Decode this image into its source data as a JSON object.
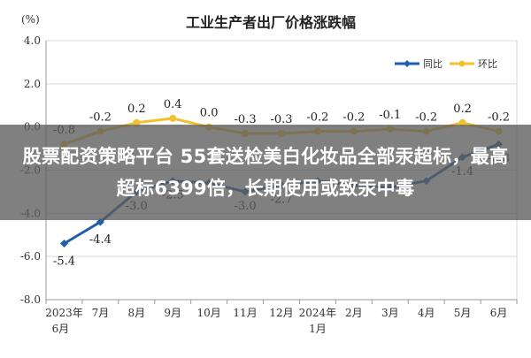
{
  "page": {
    "banner_text": "股票配资策略平台 55套送检美白化妆品全部汞超标，最高超标6399倍，长期使用或致汞中毒"
  },
  "chart_data": {
    "type": "line",
    "title": "工业生产者出厂价格涨跌幅",
    "ylabel": "(%)",
    "xlabel": "",
    "ylim": [
      -8.0,
      4.0
    ],
    "yticks": [
      "4.0",
      "2.0",
      "0.0",
      "-2.0",
      "-4.0",
      "-6.0",
      "-8.0"
    ],
    "ytick_values": [
      4,
      2,
      0,
      -2,
      -4,
      -6,
      -8
    ],
    "categories": [
      {
        "line1": "2023年",
        "line2": "6月"
      },
      {
        "line1": "7月",
        "line2": ""
      },
      {
        "line1": "8月",
        "line2": ""
      },
      {
        "line1": "9月",
        "line2": ""
      },
      {
        "line1": "10月",
        "line2": ""
      },
      {
        "line1": "11月",
        "line2": ""
      },
      {
        "line1": "12月",
        "line2": ""
      },
      {
        "line1": "2024年",
        "line2": "1月"
      },
      {
        "line1": "2月",
        "line2": ""
      },
      {
        "line1": "3月",
        "line2": ""
      },
      {
        "line1": "4月",
        "line2": ""
      },
      {
        "line1": "5月",
        "line2": ""
      },
      {
        "line1": "6月",
        "line2": ""
      }
    ],
    "legend_position": "top-right",
    "grid": true,
    "series": [
      {
        "name": "同比",
        "color": "#1f5fa8",
        "values": [
          -5.4,
          -4.4,
          -3.0,
          -2.5,
          -2.6,
          -3.0,
          -2.7,
          -2.5,
          -2.7,
          -2.8,
          -2.5,
          -1.4,
          -0.8
        ],
        "labels": [
          "-5.4",
          "-4.4",
          "-3.0",
          "-2.5",
          "",
          "-3.0",
          "-2.7",
          "",
          "",
          "",
          "",
          "-1.4",
          "-0.8"
        ]
      },
      {
        "name": "环比",
        "color": "#f2c12e",
        "values": [
          -0.8,
          -0.2,
          0.2,
          0.4,
          0.0,
          -0.3,
          -0.3,
          -0.2,
          -0.2,
          -0.1,
          -0.2,
          0.2,
          -0.2
        ],
        "labels": [
          "-0.8",
          "-0.2",
          "0.2",
          "0.4",
          "0.0",
          "-0.3",
          "-0.3",
          "-0.2",
          "-0.2",
          "-0.1",
          "-0.2",
          "0.2",
          "-0.2"
        ]
      }
    ]
  }
}
